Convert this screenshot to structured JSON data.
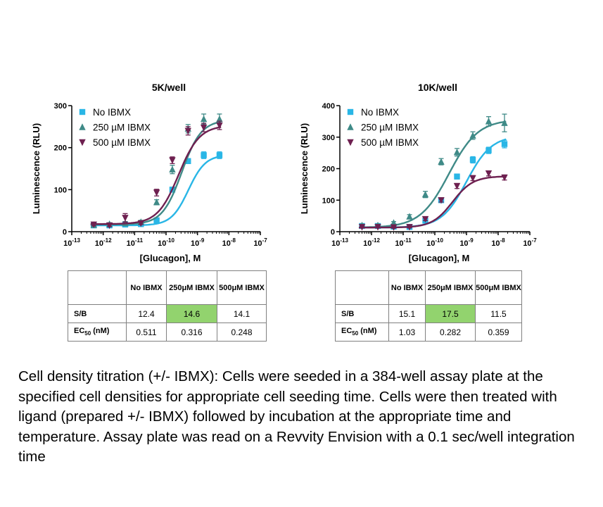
{
  "chart_data": [
    {
      "type": "line",
      "title": "5K/well",
      "xlabel": "[Glucagon], M",
      "ylabel": "Luminescence (RLU)",
      "xscale": "log",
      "xlim_exp": [
        -13,
        -7
      ],
      "x_ticks": [
        "10-13",
        "10-12",
        "10-11",
        "10-10",
        "10-9",
        "10-8",
        "10-7"
      ],
      "ylim": [
        0,
        300
      ],
      "y_ticks": [
        0,
        100,
        200,
        300
      ],
      "legend_position": "top-left",
      "series": [
        {
          "name": "No IBMX",
          "marker": "square",
          "color": "#29b6e6",
          "x_log": [
            -12.3,
            -11.8,
            -11.3,
            -10.8,
            -10.3,
            -9.8,
            -9.3,
            -8.8,
            -8.3
          ],
          "y": [
            15,
            15,
            17,
            18,
            27,
            100,
            168,
            182,
            182
          ],
          "err": [
            3,
            3,
            3,
            3,
            3,
            6,
            6,
            8,
            8
          ],
          "fit": {
            "bottom": 15,
            "top": 183,
            "log_ec50": -9.29,
            "hill": 1.6
          }
        },
        {
          "name": "250 µM IBMX",
          "marker": "triangle-up",
          "color": "#3f8a87",
          "x_log": [
            -12.3,
            -11.8,
            -11.3,
            -10.8,
            -10.3,
            -9.8,
            -9.3,
            -8.8,
            -8.3
          ],
          "y": [
            16,
            18,
            20,
            23,
            70,
            148,
            245,
            268,
            268
          ],
          "err": [
            3,
            3,
            4,
            4,
            6,
            10,
            10,
            12,
            12
          ],
          "fit": {
            "bottom": 17,
            "top": 266,
            "log_ec50": -9.5,
            "hill": 1.4
          }
        },
        {
          "name": "500 µM IBMX",
          "marker": "triangle-down",
          "color": "#6e2050",
          "x_log": [
            -12.3,
            -11.8,
            -11.3,
            -10.8,
            -10.3,
            -9.8,
            -9.3,
            -8.8,
            -8.3
          ],
          "y": [
            17,
            15,
            33,
            20,
            93,
            170,
            240,
            248,
            253
          ],
          "err": [
            3,
            3,
            10,
            3,
            8,
            8,
            10,
            10,
            10
          ],
          "fit": {
            "bottom": 18,
            "top": 253,
            "log_ec50": -9.6,
            "hill": 1.3
          }
        }
      ]
    },
    {
      "type": "line",
      "title": "10K/well",
      "xlabel": "[Glucagon], M",
      "ylabel": "Luminescence (RLU)",
      "xscale": "log",
      "xlim_exp": [
        -13,
        -7
      ],
      "x_ticks": [
        "10-13",
        "10-12",
        "10-11",
        "10-10",
        "10-9",
        "10-8",
        "10-7"
      ],
      "ylim": [
        0,
        400
      ],
      "y_ticks": [
        0,
        100,
        200,
        300,
        400
      ],
      "legend_position": "top-left",
      "series": [
        {
          "name": "No IBMX",
          "marker": "square",
          "color": "#29b6e6",
          "x_log": [
            -12.3,
            -11.8,
            -11.3,
            -10.8,
            -10.3,
            -9.8,
            -9.3,
            -8.8,
            -8.3,
            -7.8
          ],
          "y": [
            18,
            18,
            16,
            15,
            35,
            100,
            175,
            228,
            258,
            278
          ],
          "err": [
            3,
            3,
            3,
            3,
            5,
            8,
            8,
            10,
            10,
            12
          ],
          "fit": {
            "bottom": 13,
            "top": 305,
            "log_ec50": -9.0,
            "hill": 1.1
          }
        },
        {
          "name": "250 µM IBMX",
          "marker": "triangle-up",
          "color": "#3f8a87",
          "x_log": [
            -12.3,
            -11.8,
            -11.3,
            -10.8,
            -10.3,
            -9.8,
            -9.3,
            -8.8,
            -8.3,
            -7.8
          ],
          "y": [
            20,
            20,
            28,
            48,
            118,
            222,
            252,
            305,
            350,
            345
          ],
          "err": [
            4,
            4,
            4,
            6,
            10,
            10,
            12,
            12,
            15,
            28
          ],
          "fit": {
            "bottom": 13,
            "top": 356,
            "log_ec50": -9.55,
            "hill": 0.95
          }
        },
        {
          "name": "500 µM IBMX",
          "marker": "triangle-down",
          "color": "#6e2050",
          "x_log": [
            -12.3,
            -11.8,
            -11.3,
            -10.8,
            -10.3,
            -9.8,
            -9.3,
            -8.8,
            -8.3,
            -7.8
          ],
          "y": [
            15,
            15,
            14,
            15,
            40,
            100,
            145,
            170,
            185,
            172
          ],
          "err": [
            3,
            3,
            3,
            3,
            5,
            6,
            8,
            8,
            8,
            8
          ],
          "fit": {
            "bottom": 13,
            "top": 176,
            "log_ec50": -9.44,
            "hill": 1.35
          }
        }
      ]
    }
  ],
  "tables": {
    "left": {
      "headers": [
        "No IBMX",
        "250μM IBMX",
        "500μM IBMX"
      ],
      "rows": [
        {
          "label": "S/B",
          "values": [
            "12.4",
            "14.6",
            "14.1"
          ]
        },
        {
          "label_main": "EC",
          "label_sub": "50",
          "label_unit": " (nM)",
          "values": [
            "0.511",
            "0.316",
            "0.248"
          ]
        }
      ]
    },
    "right": {
      "headers": [
        "No IBMX",
        "250μM IBMX",
        "500μM IBMX"
      ],
      "rows": [
        {
          "label": "S/B",
          "values": [
            "15.1",
            "17.5",
            "11.5"
          ]
        },
        {
          "label_main": "EC",
          "label_sub": "50",
          "label_unit": " (nM)",
          "values": [
            "1.03",
            "0.282",
            "0.359"
          ]
        }
      ]
    },
    "highlight_color": "#92d36e"
  },
  "caption": "Cell density titration (+/- IBMX): Cells were seeded in a 384-well assay plate at the specified cell densities for appropriate cell seeding time. Cells were then treated with ligand (prepared +/- IBMX) followed by incubation at the appropriate time and temperature. Assay plate was read on a Revvity Envision with a 0.1 sec/well integration time"
}
